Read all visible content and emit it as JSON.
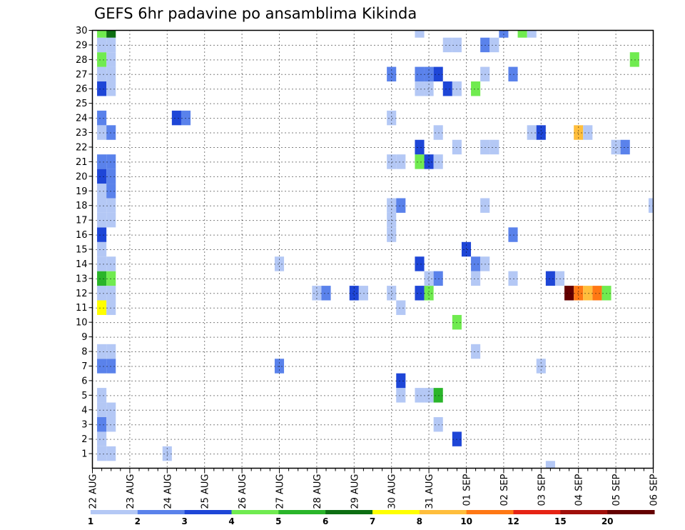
{
  "chart_data": {
    "type": "heatmap",
    "title": "GEFS 6hr padavine po ansamblima Kikinda",
    "x_tick_labels": [
      "22 AUG",
      "23 AUG",
      "24 AUG",
      "25 AUG",
      "26 AUG",
      "27 AUG",
      "28 AUG",
      "29 AUG",
      "30 AUG",
      "31 AUG",
      "01 SEP",
      "02 SEP",
      "03 SEP",
      "04 SEP",
      "05 SEP",
      "06 SEP"
    ],
    "y_tick_labels": [
      "1",
      "2",
      "3",
      "4",
      "5",
      "6",
      "7",
      "8",
      "9",
      "10",
      "11",
      "12",
      "13",
      "14",
      "15",
      "16",
      "17",
      "18",
      "19",
      "20",
      "21",
      "22",
      "23",
      "24",
      "25",
      "26",
      "27",
      "28",
      "29",
      "30"
    ],
    "x_unit": "6-hour step after 22 AUG 00Z",
    "xlim": [
      0,
      60
    ],
    "ylim": [
      0,
      30
    ],
    "grid": true,
    "colorbar": {
      "levels": [
        "1",
        "2",
        "3",
        "4",
        "5",
        "6",
        "7",
        "8",
        "10",
        "12",
        "15",
        "20"
      ],
      "colors": [
        "#b4c8f5",
        "#5a82eb",
        "#1e46d7",
        "#70eb50",
        "#2ab52a",
        "#0d6e12",
        "#ffff00",
        "#ffbe3c",
        "#ff7814",
        "#e62314",
        "#a00f0a",
        "#640000"
      ]
    },
    "cells": [
      [
        1,
        1,
        0
      ],
      [
        1,
        2,
        0
      ],
      [
        1,
        3,
        1
      ],
      [
        1,
        4,
        0
      ],
      [
        1,
        5,
        0
      ],
      [
        1,
        7,
        1
      ],
      [
        1,
        8,
        0
      ],
      [
        1,
        11,
        6
      ],
      [
        1,
        12,
        0
      ],
      [
        1,
        13,
        4
      ],
      [
        1,
        14,
        0
      ],
      [
        1,
        15,
        0
      ],
      [
        1,
        16,
        2
      ],
      [
        1,
        17,
        0
      ],
      [
        1,
        18,
        0
      ],
      [
        1,
        19,
        0
      ],
      [
        1,
        20,
        2
      ],
      [
        1,
        21,
        1
      ],
      [
        1,
        23,
        0
      ],
      [
        1,
        24,
        1
      ],
      [
        1,
        26,
        2
      ],
      [
        1,
        27,
        0
      ],
      [
        1,
        28,
        3
      ],
      [
        1,
        29,
        0
      ],
      [
        1,
        30,
        3
      ],
      [
        2,
        1,
        0
      ],
      [
        2,
        3,
        0
      ],
      [
        2,
        4,
        0
      ],
      [
        2,
        7,
        1
      ],
      [
        2,
        8,
        0
      ],
      [
        2,
        11,
        0
      ],
      [
        2,
        12,
        0
      ],
      [
        2,
        13,
        3
      ],
      [
        2,
        14,
        0
      ],
      [
        2,
        17,
        0
      ],
      [
        2,
        18,
        0
      ],
      [
        2,
        19,
        1
      ],
      [
        2,
        20,
        1
      ],
      [
        2,
        21,
        1
      ],
      [
        2,
        23,
        1
      ],
      [
        2,
        26,
        0
      ],
      [
        2,
        27,
        0
      ],
      [
        2,
        28,
        0
      ],
      [
        2,
        29,
        0
      ],
      [
        2,
        30,
        5
      ],
      [
        8,
        1,
        0
      ],
      [
        9,
        24,
        2
      ],
      [
        10,
        24,
        1
      ],
      [
        20,
        7,
        1
      ],
      [
        20,
        14,
        0
      ],
      [
        24,
        12,
        0
      ],
      [
        25,
        12,
        1
      ],
      [
        28,
        12,
        2
      ],
      [
        29,
        12,
        0
      ],
      [
        32,
        12,
        0
      ],
      [
        32,
        16,
        0
      ],
      [
        32,
        17,
        0
      ],
      [
        32,
        18,
        0
      ],
      [
        32,
        21,
        0
      ],
      [
        32,
        24,
        0
      ],
      [
        32,
        27,
        1
      ],
      [
        33,
        5,
        0
      ],
      [
        33,
        6,
        2
      ],
      [
        33,
        11,
        0
      ],
      [
        33,
        18,
        1
      ],
      [
        33,
        21,
        0
      ],
      [
        35,
        5,
        0
      ],
      [
        35,
        12,
        2
      ],
      [
        35,
        14,
        2
      ],
      [
        35,
        21,
        3
      ],
      [
        35,
        22,
        2
      ],
      [
        35,
        26,
        0
      ],
      [
        35,
        27,
        1
      ],
      [
        35,
        30,
        0
      ],
      [
        36,
        5,
        0
      ],
      [
        36,
        12,
        3
      ],
      [
        36,
        13,
        0
      ],
      [
        36,
        21,
        2
      ],
      [
        36,
        26,
        0
      ],
      [
        36,
        27,
        1
      ],
      [
        37,
        3,
        0
      ],
      [
        37,
        5,
        4
      ],
      [
        37,
        13,
        1
      ],
      [
        37,
        21,
        0
      ],
      [
        37,
        23,
        0
      ],
      [
        37,
        27,
        2
      ],
      [
        38,
        26,
        2
      ],
      [
        38,
        29,
        0
      ],
      [
        39,
        2,
        2
      ],
      [
        39,
        10,
        3
      ],
      [
        39,
        22,
        0
      ],
      [
        39,
        26,
        0
      ],
      [
        39,
        29,
        0
      ],
      [
        40,
        15,
        2
      ],
      [
        41,
        8,
        0
      ],
      [
        41,
        13,
        0
      ],
      [
        41,
        14,
        1
      ],
      [
        41,
        26,
        3
      ],
      [
        42,
        14,
        0
      ],
      [
        42,
        18,
        0
      ],
      [
        42,
        22,
        0
      ],
      [
        42,
        27,
        0
      ],
      [
        42,
        29,
        1
      ],
      [
        43,
        22,
        0
      ],
      [
        43,
        29,
        0
      ],
      [
        44,
        30,
        1
      ],
      [
        45,
        16,
        1
      ],
      [
        45,
        13,
        0
      ],
      [
        45,
        27,
        1
      ],
      [
        46,
        30,
        3
      ],
      [
        47,
        23,
        0
      ],
      [
        47,
        30,
        0
      ],
      [
        48,
        7,
        0
      ],
      [
        48,
        23,
        2
      ],
      [
        49,
        0,
        0
      ],
      [
        49,
        13,
        2
      ],
      [
        50,
        13,
        0
      ],
      [
        51,
        12,
        11
      ],
      [
        52,
        12,
        8
      ],
      [
        52,
        23,
        7
      ],
      [
        53,
        12,
        7
      ],
      [
        53,
        23,
        0
      ],
      [
        54,
        12,
        8
      ],
      [
        55,
        12,
        3
      ],
      [
        56,
        22,
        0
      ],
      [
        57,
        22,
        1
      ],
      [
        58,
        28,
        3
      ],
      [
        60,
        18,
        0
      ]
    ]
  }
}
